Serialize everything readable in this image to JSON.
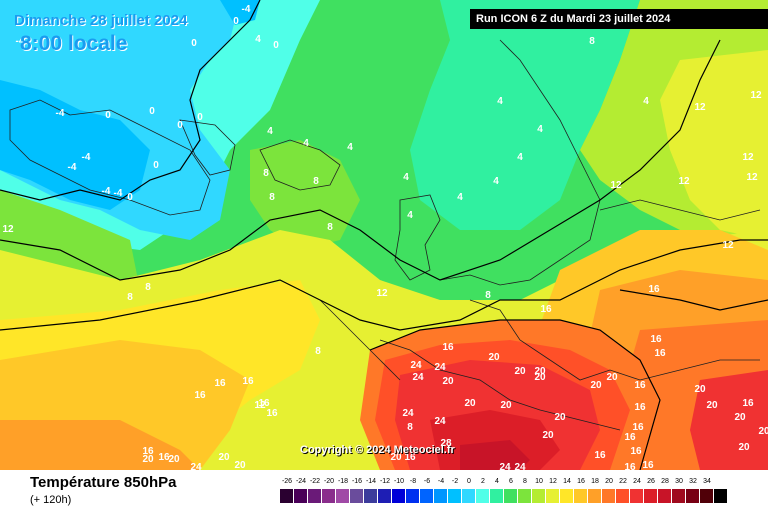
{
  "header": {
    "date": "Dimanche 28 juillet 2024",
    "time": "8:00 locale",
    "run": "Run ICON 6 Z du Mardi 23 juillet 2024"
  },
  "copyright": "Copyright © 2024 Meteociel.fr",
  "footer": {
    "parameter": "Température 850hPa",
    "lead": "(+ 120h)"
  },
  "scale": [
    {
      "value": "-26",
      "color": "#2a0030"
    },
    {
      "value": "-24",
      "color": "#4a0058"
    },
    {
      "value": "-22",
      "color": "#6a1a78"
    },
    {
      "value": "-20",
      "color": "#8a2d8c"
    },
    {
      "value": "-18",
      "color": "#a04aa6"
    },
    {
      "value": "-16",
      "color": "#6a4c9c"
    },
    {
      "value": "-14",
      "color": "#3c3c9c"
    },
    {
      "value": "-12",
      "color": "#1e1eb4"
    },
    {
      "value": "-10",
      "color": "#0000d8"
    },
    {
      "value": "-8",
      "color": "#0030f0"
    },
    {
      "value": "-6",
      "color": "#0064ff"
    },
    {
      "value": "-4",
      "color": "#0096ff"
    },
    {
      "value": "-2",
      "color": "#00c0ff"
    },
    {
      "value": "0",
      "color": "#30d8ff"
    },
    {
      "value": "2",
      "color": "#50ffe8"
    },
    {
      "value": "4",
      "color": "#30f0a0"
    },
    {
      "value": "6",
      "color": "#40e060"
    },
    {
      "value": "8",
      "color": "#7ce43c"
    },
    {
      "value": "10",
      "color": "#b4ec32"
    },
    {
      "value": "12",
      "color": "#e6f032"
    },
    {
      "value": "14",
      "color": "#ffe628"
    },
    {
      "value": "16",
      "color": "#ffc828"
    },
    {
      "value": "18",
      "color": "#ffa028"
    },
    {
      "value": "20",
      "color": "#ff7828"
    },
    {
      "value": "22",
      "color": "#ff5028"
    },
    {
      "value": "24",
      "color": "#f03232"
    },
    {
      "value": "26",
      "color": "#dc1e28"
    },
    {
      "value": "28",
      "color": "#c81428"
    },
    {
      "value": "30",
      "color": "#a00a1e"
    },
    {
      "value": "32",
      "color": "#780014"
    },
    {
      "value": "34",
      "color": "#500008"
    },
    {
      "value": "",
      "color": "#000000"
    }
  ],
  "isotherm_labels": [
    "-4",
    "0",
    "-4",
    "4",
    "0",
    "0",
    "-4",
    "0",
    "0",
    "-4",
    "-4",
    "0",
    "0",
    "-4",
    "4",
    "4",
    "4",
    "-4",
    "0",
    "0",
    "8",
    "12",
    "4",
    "4",
    "4",
    "4",
    "4",
    "4",
    "8",
    "8",
    "8",
    "12",
    "4",
    "4",
    "12",
    "12",
    "12",
    "8",
    "12",
    "12",
    "8",
    "8",
    "8",
    "8",
    "12",
    "12",
    "16",
    "16",
    "16",
    "8",
    "16",
    "16",
    "16",
    "20",
    "20",
    "16",
    "12",
    "16",
    "16",
    "20",
    "20",
    "20",
    "20",
    "24",
    "24",
    "24",
    "16",
    "20",
    "20",
    "24",
    "28",
    "24",
    "24",
    "20",
    "20",
    "16",
    "16",
    "16",
    "16",
    "16",
    "20",
    "20",
    "20",
    "16",
    "16",
    "16",
    "20",
    "20",
    "20",
    "16",
    "20",
    "20",
    "16",
    "16",
    "16",
    "24",
    "24",
    "20",
    "20",
    "20"
  ]
}
